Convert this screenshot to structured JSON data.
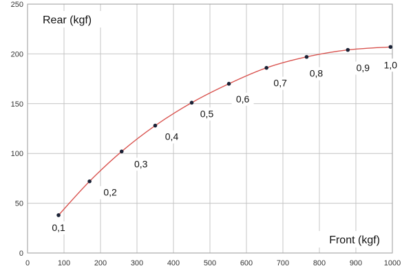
{
  "chart_data": {
    "type": "scatter",
    "title": "",
    "xlabel": "Front (kgf)",
    "ylabel": "Rear (kgf)",
    "xlim": [
      0,
      1000
    ],
    "ylim": [
      0,
      250
    ],
    "xticks": [
      0,
      100,
      200,
      300,
      400,
      500,
      600,
      700,
      800,
      900,
      1000
    ],
    "yticks": [
      0,
      50,
      100,
      150,
      200,
      250
    ],
    "grid": true,
    "legend": "none",
    "series": [
      {
        "points": [
          {
            "x": 85,
            "y": 38,
            "label": "0,1"
          },
          {
            "x": 170,
            "y": 72,
            "label": "0,2"
          },
          {
            "x": 258,
            "y": 102,
            "label": "0,3"
          },
          {
            "x": 350,
            "y": 128,
            "label": "0,4"
          },
          {
            "x": 450,
            "y": 151,
            "label": "0,5"
          },
          {
            "x": 552,
            "y": 170,
            "label": "0,6"
          },
          {
            "x": 655,
            "y": 186,
            "label": "0,7"
          },
          {
            "x": 765,
            "y": 197,
            "label": "0,8"
          },
          {
            "x": 878,
            "y": 204,
            "label": "0,9"
          },
          {
            "x": 995,
            "y": 207,
            "label": "1,0"
          }
        ]
      }
    ],
    "colors": {
      "curve": "#d9534f",
      "marker": "#1a2236",
      "grid": "#c4c4c4",
      "label_bg": "#ffffff"
    }
  }
}
